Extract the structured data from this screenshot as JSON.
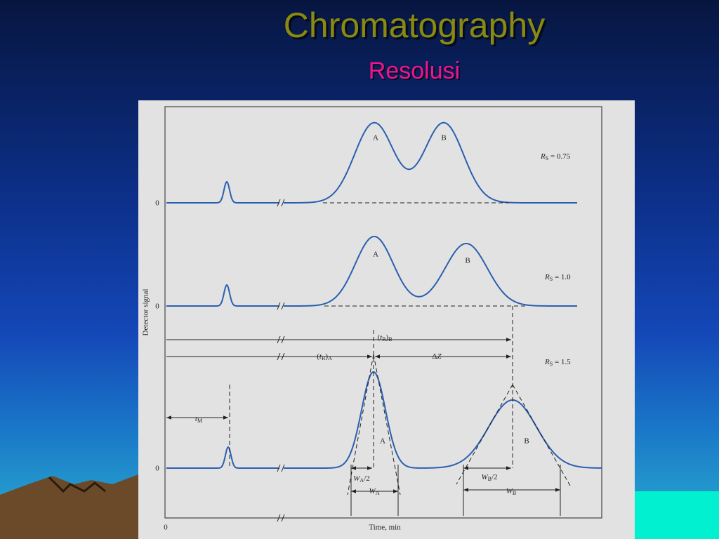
{
  "slide": {
    "title": "Chromatography",
    "subtitle": "Resolusi"
  },
  "figure": {
    "y_axis_label": "Detector signal",
    "x_axis_label": "Time, min",
    "x_origin": "0",
    "panels": [
      {
        "zero": "0",
        "peaks": [
          "A",
          "B"
        ],
        "resolution": [
          {
            "t": "R",
            "s": "i"
          },
          {
            "t": "S",
            "s": "sub"
          },
          {
            "t": " = 0.75",
            "s": ""
          }
        ]
      },
      {
        "zero": "0",
        "peaks": [
          "A",
          "B"
        ],
        "resolution": [
          {
            "t": "R",
            "s": "i"
          },
          {
            "t": "S",
            "s": "sub"
          },
          {
            "t": " = 1.0",
            "s": ""
          }
        ]
      },
      {
        "zero": "0",
        "peaks": [
          "A",
          "B"
        ],
        "resolution": [
          {
            "t": "R",
            "s": "i"
          },
          {
            "t": "S",
            "s": "sub"
          },
          {
            "t": " = 1.5",
            "s": ""
          }
        ]
      }
    ],
    "annotations": {
      "t_m": [
        {
          "t": "t",
          "s": "i"
        },
        {
          "t": "M",
          "s": "sub"
        }
      ],
      "t_r_b": [
        {
          "t": "(",
          "s": ""
        },
        {
          "t": "t",
          "s": "i"
        },
        {
          "t": "R",
          "s": "sub"
        },
        {
          "t": ")",
          "s": ""
        },
        {
          "t": "B",
          "s": "sub"
        }
      ],
      "t_r_a": [
        {
          "t": "(",
          "s": ""
        },
        {
          "t": "t",
          "s": "i"
        },
        {
          "t": "R",
          "s": "sub"
        },
        {
          "t": ")",
          "s": ""
        },
        {
          "t": "A",
          "s": "sub"
        }
      ],
      "delta_z": [
        {
          "t": "Δ",
          "s": ""
        },
        {
          "t": "Z",
          "s": "i"
        }
      ],
      "w_a_half": [
        {
          "t": "W",
          "s": "i"
        },
        {
          "t": "A",
          "s": "sub"
        },
        {
          "t": "/2",
          "s": ""
        }
      ],
      "w_a": [
        {
          "t": "W",
          "s": "i"
        },
        {
          "t": "A",
          "s": "sub"
        }
      ],
      "w_b_half": [
        {
          "t": "W",
          "s": "i"
        },
        {
          "t": "B",
          "s": "sub"
        },
        {
          "t": "/2",
          "s": ""
        }
      ],
      "w_b": [
        {
          "t": "W",
          "s": "i"
        },
        {
          "t": "B",
          "s": "sub"
        }
      ]
    }
  }
}
